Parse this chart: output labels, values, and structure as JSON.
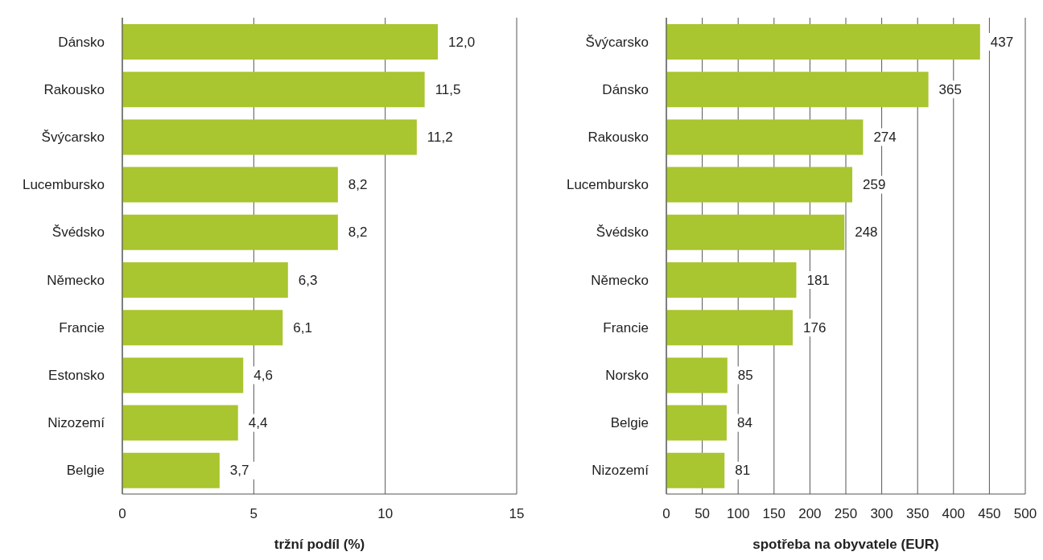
{
  "chart_data": [
    {
      "type": "bar",
      "orientation": "horizontal",
      "xlabel": "tržní podíl (%)",
      "categories": [
        "Dánsko",
        "Rakousko",
        "Švýcarsko",
        "Lucembursko",
        "Švédsko",
        "Německo",
        "Francie",
        "Estonsko",
        "Nizozemí",
        "Belgie"
      ],
      "values": [
        12.0,
        11.5,
        11.2,
        8.2,
        8.2,
        6.3,
        6.1,
        4.6,
        4.4,
        3.7
      ],
      "value_labels": [
        "12,0",
        "11,5",
        "11,2",
        "8,2",
        "8,2",
        "6,3",
        "6,1",
        "4,6",
        "4,4",
        "3,7"
      ],
      "color": "#a9c52f",
      "xlim": [
        0,
        15
      ],
      "xticks": [
        0,
        5,
        10,
        15
      ],
      "grid": "x"
    },
    {
      "type": "bar",
      "orientation": "horizontal",
      "xlabel": "spotřeba na obyvatele (EUR)",
      "categories": [
        "Švýcarsko",
        "Dánsko",
        "Rakousko",
        "Lucembursko",
        "Švédsko",
        "Německo",
        "Francie",
        "Norsko",
        "Belgie",
        "Nizozemí"
      ],
      "values": [
        437,
        365,
        274,
        259,
        248,
        181,
        176,
        85,
        84,
        81
      ],
      "data_labels": true,
      "color": "#a9c52f",
      "xlim": [
        0,
        500
      ],
      "xticks": [
        0,
        50,
        100,
        150,
        200,
        250,
        300,
        350,
        400,
        450,
        500
      ],
      "grid": "x"
    }
  ]
}
